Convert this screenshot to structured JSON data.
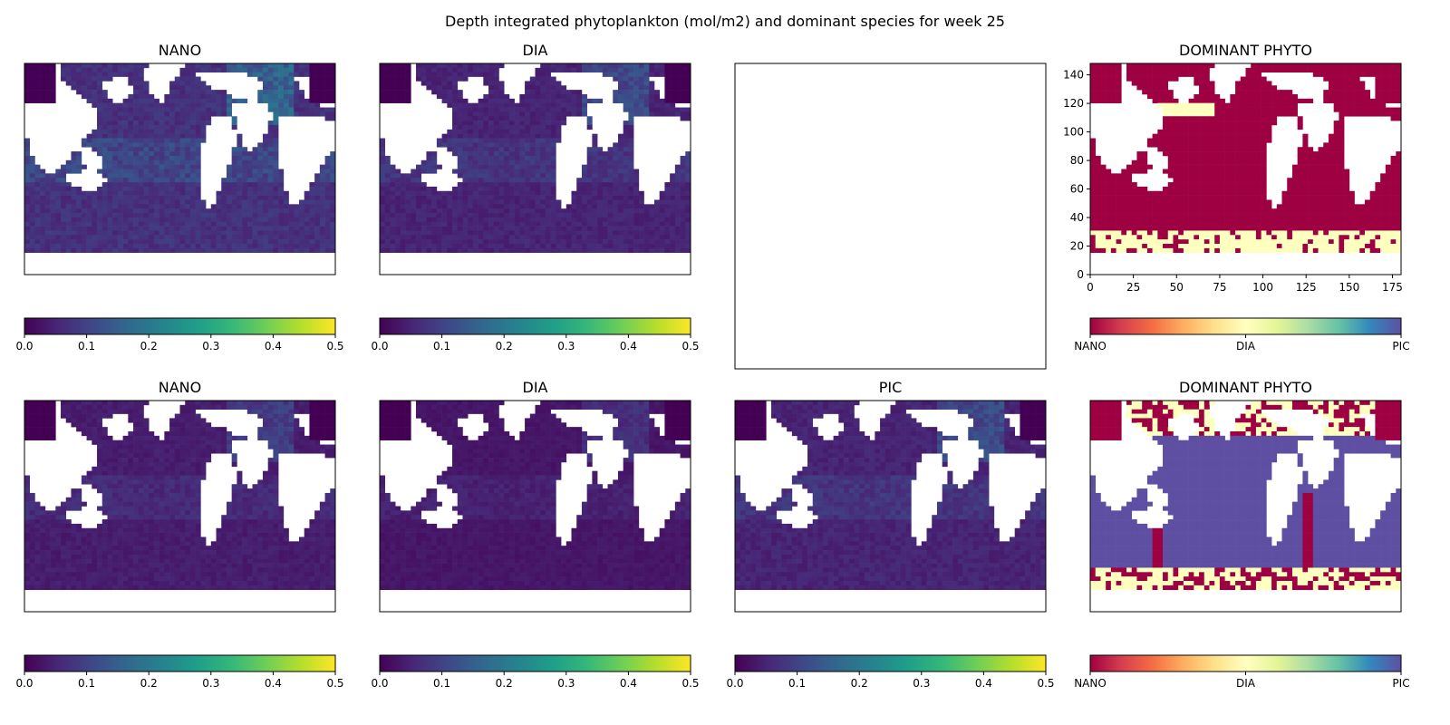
{
  "figure": {
    "suptitle": "Depth integrated phytoplankton (mol/m2) and dominant species for week 25"
  },
  "colors": {
    "land": "#ffffff",
    "frame": "#000000",
    "viridis": [
      "#440154",
      "#482878",
      "#3e4989",
      "#31688e",
      "#26828e",
      "#1f9e89",
      "#35b779",
      "#6ece58",
      "#b5de2b",
      "#fde725"
    ],
    "spectral_dominant": [
      "#9e0142",
      "#d53e4f",
      "#f46d43",
      "#fdae61",
      "#fee08b",
      "#ffffbf",
      "#e6f598",
      "#abdda4",
      "#66c2a5",
      "#3288bd",
      "#5e4fa2"
    ],
    "dominant_nano": "#9e0142",
    "dominant_dia": "#ffffbf",
    "dominant_pic": "#5e4fa2"
  },
  "chart_data": [
    {
      "type": "heatmap",
      "id": "r0c0",
      "title": "NANO",
      "colormap": "viridis",
      "colorbar": {
        "vmin": 0.0,
        "vmax": 0.5,
        "ticks": [
          "0.0",
          "0.1",
          "0.2",
          "0.3",
          "0.4",
          "0.5"
        ]
      },
      "grid_extent": {
        "x": [
          0,
          180
        ],
        "y": [
          0,
          148
        ]
      },
      "axes_visible": false,
      "typical_value": 0.07,
      "value_pattern": "mostly 0.03-0.12; higher (~0.15-0.2) in tropical band and North Atlantic; saturated ~0.5 at a few high-latitude points"
    },
    {
      "type": "heatmap",
      "id": "r0c1",
      "title": "DIA",
      "colormap": "viridis",
      "colorbar": {
        "vmin": 0.0,
        "vmax": 0.5,
        "ticks": [
          "0.0",
          "0.1",
          "0.2",
          "0.3",
          "0.4",
          "0.5"
        ]
      },
      "grid_extent": {
        "x": [
          0,
          180
        ],
        "y": [
          0,
          148
        ]
      },
      "axes_visible": false,
      "typical_value": 0.05,
      "value_pattern": "mostly 0.02-0.08; higher (~0.15) in North Atlantic"
    },
    {
      "type": "heatmap",
      "id": "r0c2",
      "title": "",
      "empty": true,
      "axes_visible": false
    },
    {
      "type": "heatmap",
      "id": "r0c3",
      "title": "DOMINANT PHYTO",
      "colormap": "spectral",
      "colorbar": {
        "ticks": [
          "NANO",
          "DIA",
          "PIC"
        ]
      },
      "categories": [
        "NANO",
        "DIA",
        "PIC"
      ],
      "grid_extent": {
        "x": [
          0,
          180
        ],
        "y": [
          0,
          148
        ]
      },
      "xlim": [
        0,
        180
      ],
      "ylim": [
        0,
        148
      ],
      "xticks": [
        "0",
        "25",
        "50",
        "75",
        "100",
        "125",
        "150",
        "175"
      ],
      "yticks": [
        "0",
        "20",
        "40",
        "60",
        "80",
        "100",
        "120",
        "140"
      ],
      "axes_visible": true,
      "dominant_pattern": "NANO dominant almost everywhere; DIA dominant in Southern Ocean band (y ~ 5-25) and a patch near x 15-35, y 115-125"
    },
    {
      "type": "heatmap",
      "id": "r1c0",
      "title": "NANO",
      "colormap": "viridis",
      "colorbar": {
        "vmin": 0.0,
        "vmax": 0.5,
        "ticks": [
          "0.0",
          "0.1",
          "0.2",
          "0.3",
          "0.4",
          "0.5"
        ]
      },
      "grid_extent": {
        "x": [
          0,
          180
        ],
        "y": [
          0,
          148
        ]
      },
      "axes_visible": false,
      "typical_value": 0.04
    },
    {
      "type": "heatmap",
      "id": "r1c1",
      "title": "DIA",
      "colormap": "viridis",
      "colorbar": {
        "vmin": 0.0,
        "vmax": 0.5,
        "ticks": [
          "0.0",
          "0.1",
          "0.2",
          "0.3",
          "0.4",
          "0.5"
        ]
      },
      "grid_extent": {
        "x": [
          0,
          180
        ],
        "y": [
          0,
          148
        ]
      },
      "axes_visible": false,
      "typical_value": 0.03
    },
    {
      "type": "heatmap",
      "id": "r1c2",
      "title": "PIC",
      "colormap": "viridis",
      "colorbar": {
        "vmin": 0.0,
        "vmax": 0.5,
        "ticks": [
          "0.0",
          "0.1",
          "0.2",
          "0.3",
          "0.4",
          "0.5"
        ]
      },
      "grid_extent": {
        "x": [
          0,
          180
        ],
        "y": [
          0,
          148
        ]
      },
      "axes_visible": false,
      "typical_value": 0.05
    },
    {
      "type": "heatmap",
      "id": "r1c3",
      "title": "DOMINANT PHYTO",
      "colormap": "spectral",
      "colorbar": {
        "ticks": [
          "NANO",
          "DIA",
          "PIC"
        ]
      },
      "categories": [
        "NANO",
        "DIA",
        "PIC"
      ],
      "grid_extent": {
        "x": [
          0,
          180
        ],
        "y": [
          0,
          148
        ]
      },
      "axes_visible": false,
      "dominant_pattern": "PIC dominant over most ocean; NANO in far north and along some coasts; DIA in Southern Ocean patches and polar fringe"
    }
  ]
}
